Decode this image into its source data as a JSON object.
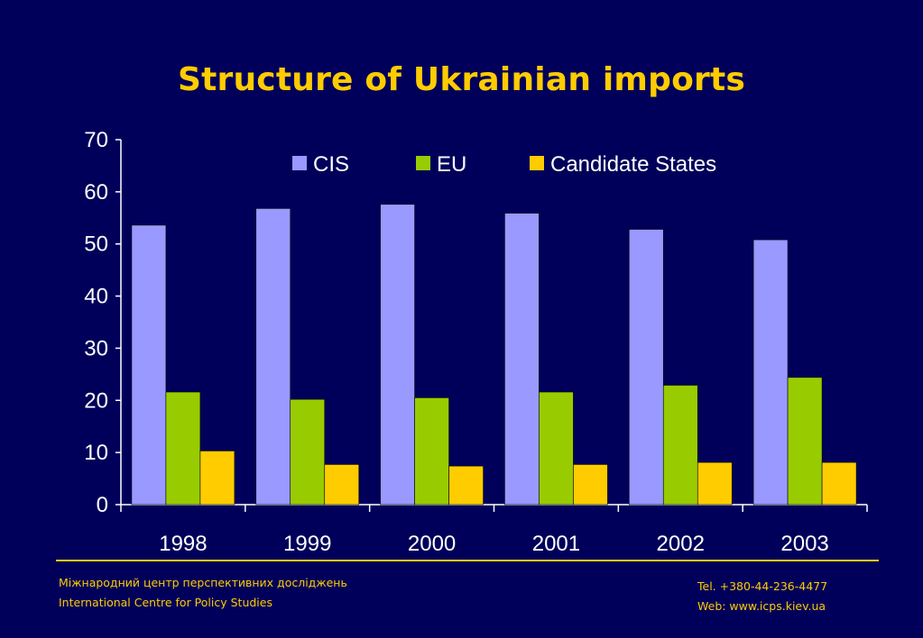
{
  "colors": {
    "background": "#00005a",
    "title": "#ffcc00",
    "axis": "#ffffff",
    "text": "#ffffff",
    "footer": "#ffcc00"
  },
  "chart_data": {
    "type": "bar",
    "title": "Structure of Ukrainian imports",
    "categories": [
      "1998",
      "1999",
      "2000",
      "2001",
      "2002",
      "2003"
    ],
    "series": [
      {
        "name": "CIS",
        "color": "#9999ff",
        "values": [
          53.6,
          56.8,
          57.6,
          55.9,
          52.8,
          50.8
        ]
      },
      {
        "name": "EU",
        "color": "#99cc00",
        "values": [
          21.6,
          20.2,
          20.5,
          21.6,
          22.9,
          24.4
        ]
      },
      {
        "name": "Candidate States",
        "color": "#ffcc00",
        "values": [
          10.3,
          7.7,
          7.4,
          7.7,
          8.1,
          8.1
        ]
      }
    ],
    "ylim": [
      0,
      70
    ],
    "yticks": [
      0,
      10,
      20,
      30,
      40,
      50,
      60,
      70
    ],
    "xlabel": "",
    "ylabel": "",
    "grid": false,
    "legend_position": "top-right"
  },
  "footer": {
    "org_ua": "Міжнародний центр перспективних досліджень",
    "org_en": "International Centre for Policy Studies",
    "tel": "Tel. +380-44-236-4477",
    "web": "Web: www.icps.kiev.ua"
  }
}
